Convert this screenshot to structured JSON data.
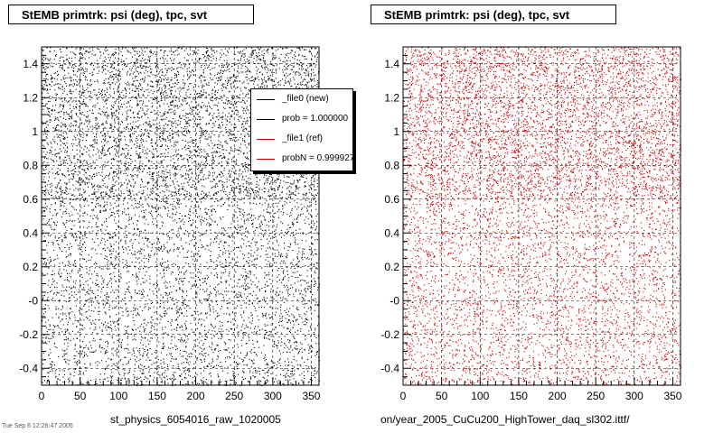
{
  "titles": {
    "left": "StEMB primtrk: psi (deg), tpc, svt",
    "right": "StEMB primtrk: psi (deg), tpc, svt"
  },
  "footer": {
    "left": "st_physics_6054016_raw_1020005",
    "right": "on/year_2005_CuCu200_HighTower_daq_sl302.ittf/",
    "stamp": "Tue Sep  6 12:26:47 2005"
  },
  "legend": {
    "entries": [
      {
        "label": "_file0 (new)",
        "color": "#000000"
      },
      {
        "label": "prob = 1.000000",
        "color": "#000000"
      },
      {
        "label": "_file1 (ref)",
        "color": "#cc0000"
      },
      {
        "label": "probN = 0.999927",
        "color": "#cc0000"
      }
    ]
  },
  "chart_data": [
    {
      "type": "scatter",
      "title": "StEMB primtrk: psi (deg), tpc, svt",
      "xlabel": "",
      "ylabel": "",
      "xlim": [
        0,
        360
      ],
      "ylim": [
        -0.5,
        1.5
      ],
      "x_ticks": [
        "0",
        "50",
        "100",
        "150",
        "200",
        "250",
        "300",
        "350"
      ],
      "y_ticks": [
        "-0.4",
        "-0.2",
        "-0",
        "0.2",
        "0.4",
        "0.6",
        "0.8",
        "1",
        "1.2",
        "1.4"
      ],
      "grid": true,
      "point_color": "#000000",
      "series": [
        {
          "name": "_file0 (new)",
          "distribution": "dense uniform",
          "density": "higher above y=0.6"
        }
      ]
    },
    {
      "type": "scatter",
      "title": "StEMB primtrk: psi (deg), tpc, svt",
      "xlabel": "",
      "ylabel": "",
      "xlim": [
        0,
        360
      ],
      "ylim": [
        -0.5,
        1.5
      ],
      "x_ticks": [
        "0",
        "50",
        "100",
        "150",
        "200",
        "250",
        "300",
        "350"
      ],
      "y_ticks": [
        "-0.4",
        "-0.2",
        "-0",
        "0.2",
        "0.4",
        "0.6",
        "0.8",
        "1",
        "1.2",
        "1.4"
      ],
      "grid": true,
      "point_color": "#cc0000",
      "series": [
        {
          "name": "_file1 (ref)",
          "distribution": "dense uniform",
          "density": "higher above y=0.6"
        }
      ]
    }
  ]
}
